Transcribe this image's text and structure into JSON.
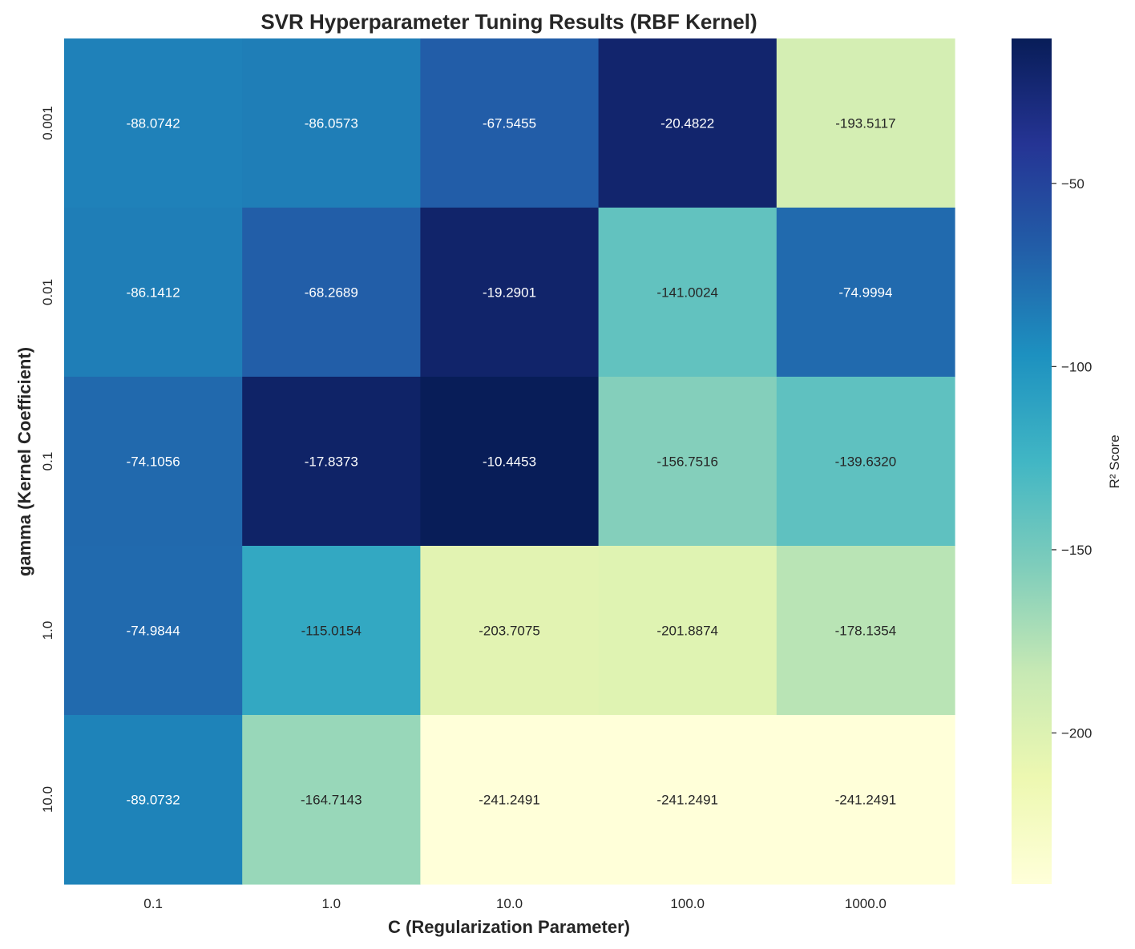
{
  "chart_data": {
    "type": "heatmap",
    "title": "SVR Hyperparameter Tuning Results (RBF Kernel)",
    "xlabel": "C (Regularization Parameter)",
    "ylabel": "gamma (Kernel Coefficient)",
    "x_categories": [
      "0.1",
      "1.0",
      "10.0",
      "100.0",
      "1000.0"
    ],
    "y_categories": [
      "0.001",
      "0.01",
      "0.1",
      "1.0",
      "10.0"
    ],
    "values": [
      [
        -88.0742,
        -86.0573,
        -67.5455,
        -20.4822,
        -193.5117
      ],
      [
        -86.1412,
        -68.2689,
        -19.2901,
        -141.0024,
        -74.9994
      ],
      [
        -74.1056,
        -17.8373,
        -10.4453,
        -156.7516,
        -139.632
      ],
      [
        -74.9844,
        -115.0154,
        -203.7075,
        -201.8874,
        -178.1354
      ],
      [
        -89.0732,
        -164.7143,
        -241.2491,
        -241.2491,
        -241.2491
      ]
    ],
    "cell_labels": [
      [
        "-88.0742",
        "-86.0573",
        "-67.5455",
        "-20.4822",
        "-193.5117"
      ],
      [
        "-86.1412",
        "-68.2689",
        "-19.2901",
        "-141.0024",
        "-74.9994"
      ],
      [
        "-74.1056",
        "-17.8373",
        "-10.4453",
        "-156.7516",
        "-139.6320"
      ],
      [
        "-74.9844",
        "-115.0154",
        "-203.7075",
        "-201.8874",
        "-178.1354"
      ],
      [
        "-89.0732",
        "-164.7143",
        "-241.2491",
        "-241.2491",
        "-241.2491"
      ]
    ],
    "colormap": "YlGnBu",
    "colormap_stops": [
      "#ffffd9",
      "#edf8b1",
      "#c7e9b4",
      "#7fcdbb",
      "#41b6c4",
      "#1d91c0",
      "#225ea8",
      "#253494",
      "#081d58"
    ],
    "vmin": -241.2491,
    "vmax": -10.4453,
    "colorbar": {
      "label": "R² Score",
      "ticks": [
        -50,
        -100,
        -150,
        -200
      ],
      "tick_labels": [
        "−50",
        "−100",
        "−150",
        "−200"
      ]
    },
    "text_dark": "#262626",
    "text_light": "#ffffff"
  }
}
